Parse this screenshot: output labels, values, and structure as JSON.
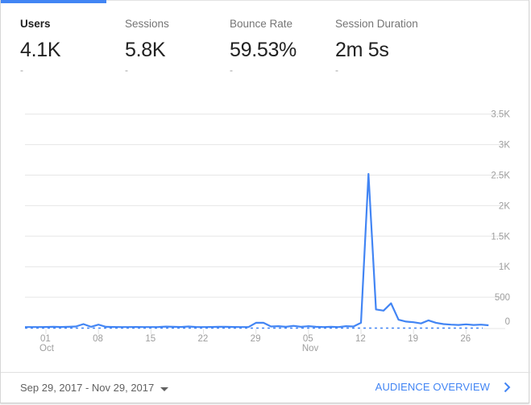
{
  "metrics": [
    {
      "label": "Users",
      "value": "4.1K",
      "delta": "-",
      "active": true
    },
    {
      "label": "Sessions",
      "value": "5.8K",
      "delta": "-",
      "active": false
    },
    {
      "label": "Bounce Rate",
      "value": "59.53%",
      "delta": "-",
      "active": false
    },
    {
      "label": "Session Duration",
      "value": "2m 5s",
      "delta": "-",
      "active": false
    }
  ],
  "colors": {
    "accent": "#4285f4",
    "line": "#4285f4",
    "grid": "#e6e6e6",
    "axis_text": "#9e9e9e",
    "active_tab_text": "#212121",
    "inactive_tab_text": "#757575"
  },
  "footer": {
    "date_range": "Sep 29, 2017 - Nov 29, 2017",
    "date_range_icon": "caret-down-icon",
    "link_label": "AUDIENCE OVERVIEW",
    "link_icon": "chevron-right-icon"
  },
  "chart_data": {
    "type": "line",
    "title": "",
    "series": [
      {
        "name": "Users",
        "values": [
          10,
          10,
          12,
          15,
          12,
          14,
          20,
          60,
          15,
          50,
          15,
          12,
          10,
          10,
          12,
          10,
          10,
          12,
          18,
          15,
          12,
          20,
          12,
          10,
          12,
          15,
          15,
          12,
          10,
          10,
          80,
          80,
          20,
          25,
          15,
          30,
          15,
          25,
          15,
          10,
          15,
          10,
          25,
          20,
          80,
          2520,
          300,
          280,
          400,
          130,
          100,
          90,
          70,
          120,
          80,
          60,
          50,
          45,
          55,
          45,
          50,
          40
        ]
      }
    ],
    "x_start": "2017-09-29",
    "x_end": "2017-11-29",
    "x_tick_labels": [
      "01 Oct",
      "08",
      "15",
      "22",
      "29",
      "05 Nov",
      "12",
      "19",
      "26"
    ],
    "y_tick_labels": [
      "0",
      "500",
      "1K",
      "1.5K",
      "2K",
      "2.5K",
      "3K",
      "3.5K"
    ],
    "ylim": [
      0,
      3500
    ],
    "grid": true,
    "y_axis_position": "right",
    "legend": "none",
    "xlabel": "",
    "ylabel": ""
  }
}
